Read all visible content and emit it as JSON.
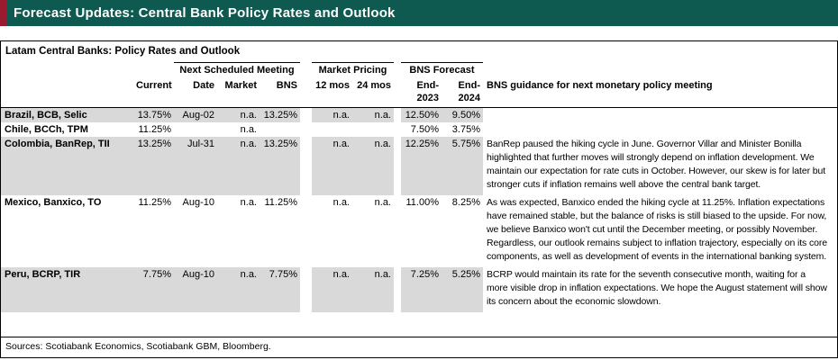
{
  "banner": {
    "title": "Forecast Updates: Central Bank Policy Rates and Outlook"
  },
  "table": {
    "title": "Latam Central Banks: Policy Rates and Outlook",
    "group_headers": {
      "next_meeting": "Next Scheduled Meeting",
      "market_pricing": "Market Pricing",
      "bns_forecast": "BNS Forecast"
    },
    "columns": {
      "current": "Current",
      "date": "Date",
      "market": "Market",
      "bns": "BNS",
      "mos12": "12 mos",
      "mos24": "24 mos",
      "end2023": "End-2023",
      "end2024": "End-2024",
      "guidance": "BNS guidance for next monetary policy meeting"
    },
    "rows": [
      {
        "name": "Brazil, BCB, Selic",
        "current": "13.75%",
        "date": "Aug-02",
        "market": "n.a.",
        "bns": "13.25%",
        "mos12": "n.a.",
        "mos24": "n.a.",
        "end2023": "12.50%",
        "end2024": "9.50%",
        "guidance": ""
      },
      {
        "name": "Chile, BCCh, TPM",
        "current": "11.25%",
        "date": "",
        "market": "n.a.",
        "bns": "",
        "mos12": "",
        "mos24": "",
        "end2023": "7.50%",
        "end2024": "3.75%",
        "guidance": ""
      },
      {
        "name": "Colombia, BanRep, TII",
        "current": "13.25%",
        "date": "Jul-31",
        "market": "n.a.",
        "bns": "13.25%",
        "mos12": "n.a.",
        "mos24": "n.a.",
        "end2023": "12.25%",
        "end2024": "5.75%",
        "guidance": "BanRep paused the hiking cycle in June. Governor Villar and Minister Bonilla highlighted that further moves will strongly depend on inflation development. We maintain our expectation for rate cuts in October. However, our skew is for later but stronger cuts if inflation remains well above the central bank target."
      },
      {
        "name": "Mexico, Banxico, TO",
        "current": "11.25%",
        "date": "Aug-10",
        "market": "n.a.",
        "bns": "11.25%",
        "mos12": "n.a.",
        "mos24": "n.a.",
        "end2023": "11.00%",
        "end2024": "8.25%",
        "guidance": "As was expected, Banxico ended the hiking cycle at 11.25%. Inflation expectations have remained stable, but the balance of risks is still biased to the upside. For now, we believe Banxico won't cut until the December meeting, or possibly November. Regardless, our outlook remains subject to inflation trajectory, especially on its core components, as well as development of events in the international banking system."
      },
      {
        "name": "Peru, BCRP, TIR",
        "current": "7.75%",
        "date": "Aug-10",
        "market": "n.a.",
        "bns": "7.75%",
        "mos12": "n.a.",
        "mos24": "n.a.",
        "end2023": "7.25%",
        "end2024": "5.25%",
        "guidance": "BCRP would maintain its rate for the seventh consecutive month, waiting for a more visible drop in inflation expectations. We hope the August statement will show its concern about the economic slowdown."
      }
    ],
    "sources": "Sources: Scotiabank Economics, Scotiabank GBM, Bloomberg."
  },
  "colors": {
    "banner_teal": "#0f5a50",
    "accent_red": "#9a1b2f",
    "row_shade": "#d9d9d9"
  }
}
